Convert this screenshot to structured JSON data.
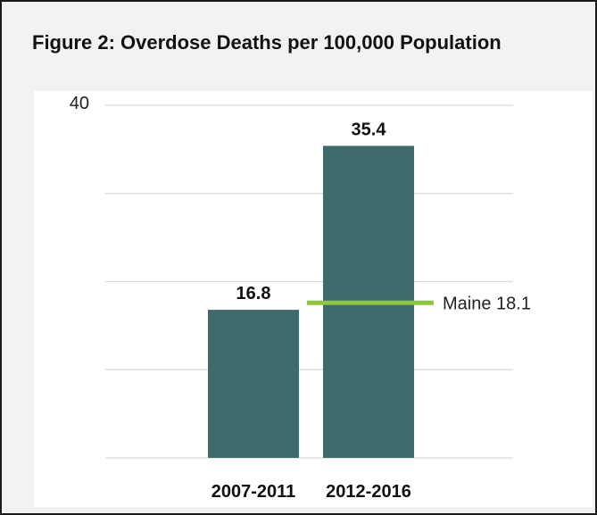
{
  "chart_data": {
    "type": "bar",
    "title": "Figure 2: Overdose Deaths per 100,000 Population",
    "categories": [
      "2007-2011",
      "2012-2016"
    ],
    "values": [
      16.8,
      35.4
    ],
    "data_labels": [
      "16.8",
      "35.4"
    ],
    "ylim": [
      0,
      40
    ],
    "y_tick_labels": [
      "40"
    ],
    "grid": true,
    "reference_line": {
      "label": "Maine 18.1",
      "value": 18.1
    },
    "colors": {
      "bar": "#3d6b6b",
      "reference": "#8cc63f",
      "grid": "#d9d9d9"
    }
  }
}
